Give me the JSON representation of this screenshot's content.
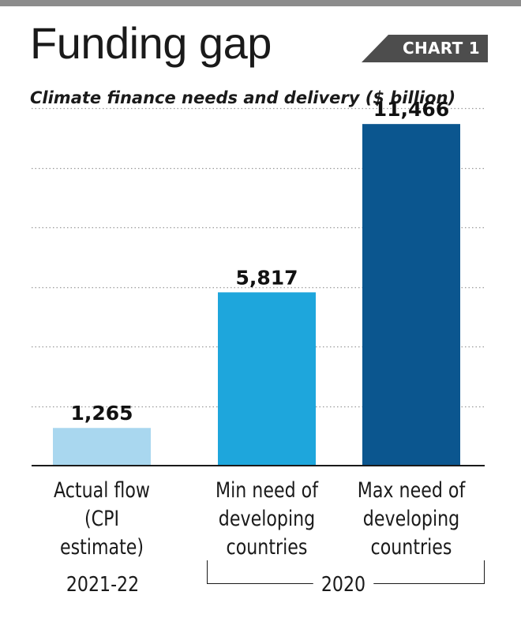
{
  "title": "Funding gap",
  "tag": "CHART 1",
  "subtitle": "Climate finance needs and delivery ($ billion)",
  "chart_data": {
    "type": "bar",
    "categories": [
      [
        "Actual flow",
        "(CPI",
        "estimate)"
      ],
      [
        "Min need of",
        "developing",
        "countries"
      ],
      [
        "Max need of",
        "developing",
        "countries"
      ]
    ],
    "values": [
      1265,
      5817,
      11466
    ],
    "value_labels": [
      "1,265",
      "5,817",
      "11,466"
    ],
    "colors": [
      "#a9d7ef",
      "#1ea6dc",
      "#0b568f"
    ],
    "ylim": [
      0,
      12000
    ],
    "gridlines": [
      2000,
      4000,
      6000,
      8000,
      10000,
      12000
    ],
    "grid": true,
    "group_labels": [
      {
        "label": "2021-22"
      },
      {
        "label": "2020"
      }
    ]
  }
}
